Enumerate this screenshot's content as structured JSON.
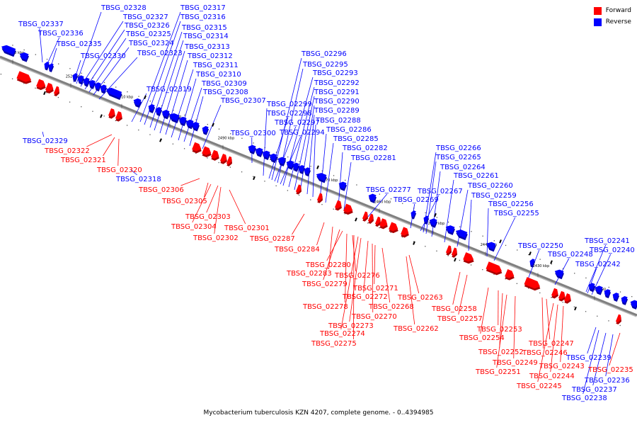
{
  "caption": "Mycobacterium tuberculosis KZN 4207, complete genome. - 0..4394985",
  "legend": [
    {
      "label": "Forward",
      "color": "#ff0000"
    },
    {
      "label": "Reverse",
      "color": "#0000ff"
    }
  ],
  "colors": {
    "forward": "#ff0000",
    "reverse": "#0000ff",
    "backbone": "#808080"
  },
  "ticks": [
    "2530 kbp",
    "2520 kbp",
    "2510 kbp",
    "2500 kbp",
    "2490 kbp",
    "2480 kbp",
    "2470 kbp",
    "2460 kbp",
    "2450 kbp",
    "2440 kbp",
    "2430 kbp",
    "2420 kbp"
  ],
  "reverse_labels": [
    "TBSG_02337",
    "TBSG_02336",
    "TBSG_02335",
    "TBSG_02330",
    "TBSG_02328",
    "TBSG_02327",
    "TBSG_02326",
    "TBSG_02325",
    "TBSG_02324",
    "TBSG_02323",
    "TBSG_02317",
    "TBSG_02316",
    "TBSG_02315",
    "TBSG_02314",
    "TBSG_02313",
    "TBSG_02312",
    "TBSG_02311",
    "TBSG_02310",
    "TBSG_02309",
    "TBSG_02308",
    "TBSG_02307",
    "TBSG_02319",
    "TBSG_02329",
    "TBSG_02318",
    "TBSG_02300",
    "TBSG_02296",
    "TBSG_02295",
    "TBSG_02293",
    "TBSG_02292",
    "TBSG_02291",
    "TBSG_02290",
    "TBSG_02299",
    "TBSG_02298",
    "TBSG_02289",
    "TBSG_02297",
    "TBSG_02288",
    "TBSG_02294",
    "TBSG_02286",
    "TBSG_02285",
    "TBSG_02282",
    "TBSG_02281",
    "TBSG_02277",
    "TBSG_02269",
    "TBSG_02266",
    "TBSG_02265",
    "TBSG_02264",
    "TBSG_02261",
    "TBSG_02267",
    "TBSG_02260",
    "TBSG_02259",
    "TBSG_02256",
    "TBSG_02255",
    "TBSG_02250",
    "TBSG_02248",
    "TBSG_02241",
    "TBSG_02240",
    "TBSG_02242",
    "TBSG_02239",
    "TBSG_02236",
    "TBSG_02237",
    "TBSG_02238"
  ],
  "forward_labels": [
    "TBSG_02322",
    "TBSG_02321",
    "TBSG_02320",
    "TBSG_02306",
    "TBSG_02305",
    "TBSG_02303",
    "TBSG_02304",
    "TBSG_02301",
    "TBSG_02302",
    "TBSG_02287",
    "TBSG_02284",
    "TBSG_02280",
    "TBSG_02283",
    "TBSG_02276",
    "TBSG_02279",
    "TBSG_02271",
    "TBSG_02272",
    "TBSG_02263",
    "TBSG_02278",
    "TBSG_02268",
    "TBSG_02270",
    "TBSG_02258",
    "TBSG_02257",
    "TBSG_02273",
    "TBSG_02262",
    "TBSG_02274",
    "TBSG_02275",
    "TBSG_02253",
    "TBSG_02254",
    "TBSG_02247",
    "TBSG_02246",
    "TBSG_02252",
    "TBSG_02249",
    "TBSG_02243",
    "TBSG_02251",
    "TBSG_02244",
    "TBSG_02245",
    "TBSG_02235"
  ]
}
